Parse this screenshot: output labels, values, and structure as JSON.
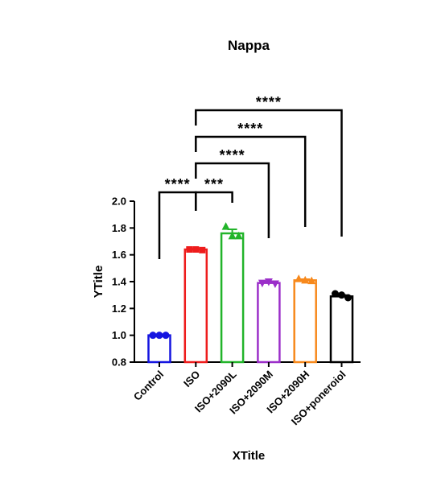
{
  "chart_data": {
    "type": "bar",
    "title": "Nappa",
    "xlabel": "XTitle",
    "ylabel": "YTitle",
    "ylim": [
      0.8,
      2.0
    ],
    "yticks": [
      "0.8",
      "1.0",
      "1.2",
      "1.4",
      "1.6",
      "1.8",
      "2.0"
    ],
    "categories": [
      "Control",
      "ISO",
      "ISO+2090L",
      "ISO+2090M",
      "ISO+2090H",
      "ISO+poneroiol"
    ],
    "values": [
      1.0,
      1.64,
      1.76,
      1.39,
      1.41,
      1.29
    ],
    "colors": [
      "#1515e0",
      "#ee1c1c",
      "#22b42a",
      "#9b2fc9",
      "#f7891c",
      "#000000"
    ],
    "markers": [
      "circle",
      "square",
      "triangle-up",
      "triangle-down",
      "triangle-up",
      "circle"
    ],
    "points": [
      [
        1.0,
        1.0,
        1.0
      ],
      [
        1.64,
        1.64,
        1.635
      ],
      [
        1.81,
        1.74,
        1.74
      ],
      [
        1.39,
        1.4,
        1.385
      ],
      [
        1.42,
        1.41,
        1.405
      ],
      [
        1.31,
        1.3,
        1.28
      ]
    ],
    "errors": [
      0.003,
      0.005,
      0.03,
      0.01,
      0.008,
      0.01
    ],
    "significance": [
      {
        "from": 0,
        "to": 1,
        "label": "****"
      },
      {
        "from": 1,
        "to": 2,
        "label": "***"
      },
      {
        "from": 1,
        "to": 3,
        "label": "****"
      },
      {
        "from": 1,
        "to": 4,
        "label": "****"
      },
      {
        "from": 1,
        "to": 5,
        "label": "****"
      }
    ],
    "legend": "none",
    "grid": false
  }
}
